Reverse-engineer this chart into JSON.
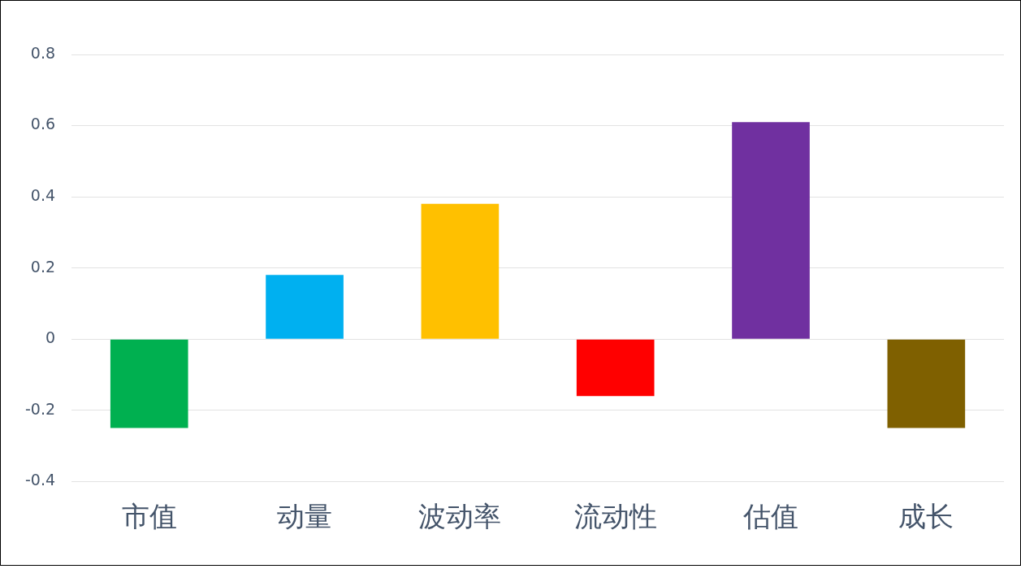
{
  "chart_data": {
    "type": "bar",
    "categories": [
      "市值",
      "动量",
      "波动率",
      "流动性",
      "估值",
      "成长"
    ],
    "values": [
      -0.25,
      0.18,
      0.38,
      -0.16,
      0.61,
      -0.25
    ],
    "colors": [
      "#00b050",
      "#00b0f0",
      "#ffc000",
      "#ff0000",
      "#7030a0",
      "#7f6000"
    ],
    "ylim": [
      -0.4,
      0.8
    ],
    "yticks": [
      -0.4,
      -0.2,
      0,
      0.2,
      0.4,
      0.6,
      0.8
    ],
    "grid": "y",
    "legend": false
  }
}
